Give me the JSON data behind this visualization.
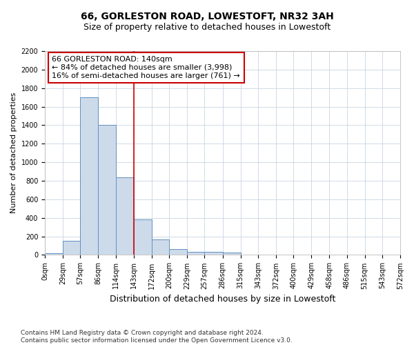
{
  "title": "66, GORLESTON ROAD, LOWESTOFT, NR32 3AH",
  "subtitle": "Size of property relative to detached houses in Lowestoft",
  "xlabel": "Distribution of detached houses by size in Lowestoft",
  "ylabel": "Number of detached properties",
  "bar_edges": [
    0,
    29,
    57,
    86,
    114,
    143,
    172,
    200,
    229,
    257,
    286,
    315,
    343,
    372,
    400,
    429,
    458,
    486,
    515,
    543,
    572
  ],
  "bar_heights": [
    15,
    150,
    1700,
    1400,
    840,
    380,
    165,
    65,
    30,
    30,
    25,
    0,
    0,
    0,
    0,
    0,
    0,
    0,
    0,
    0
  ],
  "bar_color": "#cddaea",
  "bar_edge_color": "#6090c0",
  "property_line_x": 143,
  "property_line_color": "#cc0000",
  "annotation_text": "66 GORLESTON ROAD: 140sqm\n← 84% of detached houses are smaller (3,998)\n16% of semi-detached houses are larger (761) →",
  "annotation_box_color": "#cc0000",
  "ylim": [
    0,
    2200
  ],
  "yticks": [
    0,
    200,
    400,
    600,
    800,
    1000,
    1200,
    1400,
    1600,
    1800,
    2000,
    2200
  ],
  "tick_labels": [
    "0sqm",
    "29sqm",
    "57sqm",
    "86sqm",
    "114sqm",
    "143sqm",
    "172sqm",
    "200sqm",
    "229sqm",
    "257sqm",
    "286sqm",
    "315sqm",
    "343sqm",
    "372sqm",
    "400sqm",
    "429sqm",
    "458sqm",
    "486sqm",
    "515sqm",
    "543sqm",
    "572sqm"
  ],
  "footer_text": "Contains HM Land Registry data © Crown copyright and database right 2024.\nContains public sector information licensed under the Open Government Licence v3.0.",
  "bg_color": "#ffffff",
  "grid_color": "#c8d4e3",
  "title_fontsize": 10,
  "subtitle_fontsize": 9,
  "xlabel_fontsize": 9,
  "ylabel_fontsize": 8,
  "tick_fontsize": 7,
  "annotation_fontsize": 8,
  "footer_fontsize": 6.5
}
